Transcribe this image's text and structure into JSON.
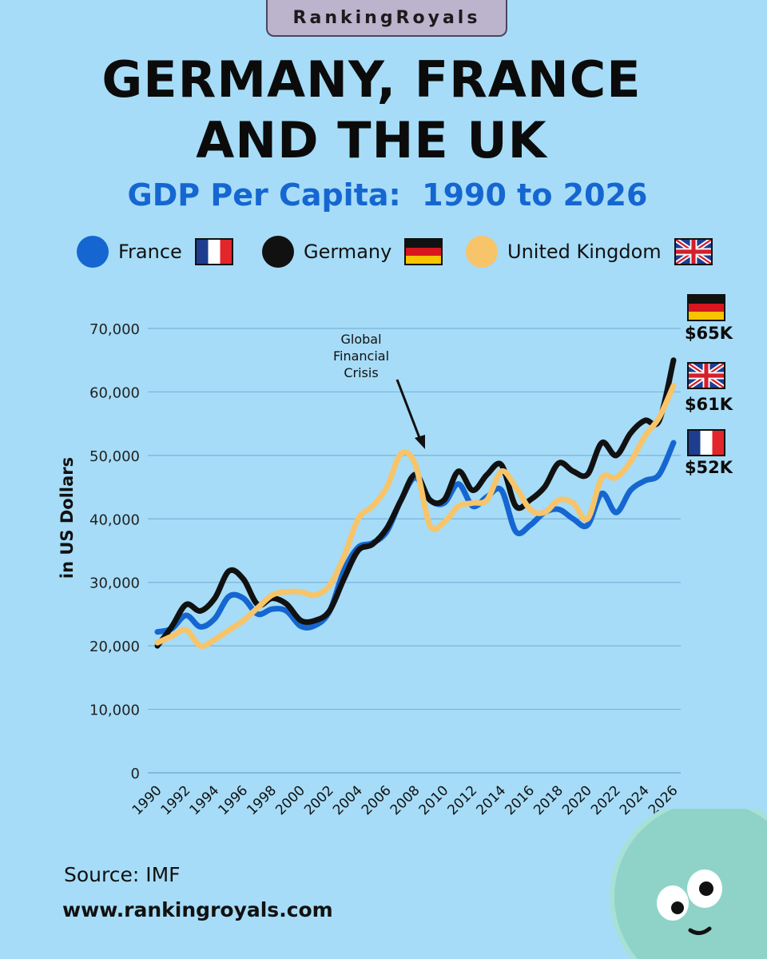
{
  "brand": "RankingRoyals",
  "title_line1": "GERMANY, FRANCE",
  "title_line2": "AND THE UK",
  "subtitle": "GDP Per Capita:  1990 to 2026",
  "legend": [
    {
      "name": "France",
      "color": "#1566d1",
      "flag": "france-flag"
    },
    {
      "name": "Germany",
      "color": "#111111",
      "flag": "germany-flag"
    },
    {
      "name": "United Kingdom",
      "color": "#f7c46a",
      "flag": "uk-flag"
    }
  ],
  "end_labels": {
    "germany": "$65K",
    "uk": "$61K",
    "france": "$52K"
  },
  "annotation": [
    "Global",
    "Financial",
    "Crisis"
  ],
  "source": "Source: IMF",
  "website": "www.rankingroyals.com",
  "colors": {
    "background": "#a6dcf7",
    "france": "#1566d1",
    "germany": "#111111",
    "uk": "#f7c46a",
    "grid": "#7ab4d8"
  },
  "chart_data": {
    "type": "line",
    "ylabel": "in US Dollars",
    "ylim": [
      0,
      70000
    ],
    "yticks": [
      "0",
      "10,000",
      "20,000",
      "30,000",
      "40,000",
      "50,000",
      "60,000",
      "70,000"
    ],
    "xticks": [
      "1990",
      "1992",
      "1994",
      "1996",
      "1998",
      "2000",
      "2002",
      "2004",
      "2006",
      "2008",
      "2010",
      "2012",
      "2014",
      "2016",
      "2018",
      "2020",
      "2022",
      "2024",
      "2026"
    ],
    "xlim": [
      1990,
      2026
    ],
    "grid": "horizontal",
    "x": [
      1990,
      1991,
      1992,
      1993,
      1994,
      1995,
      1996,
      1997,
      1998,
      1999,
      2000,
      2001,
      2002,
      2003,
      2004,
      2005,
      2006,
      2007,
      2008,
      2009,
      2010,
      2011,
      2012,
      2013,
      2014,
      2015,
      2016,
      2017,
      2018,
      2019,
      2020,
      2021,
      2022,
      2023,
      2024,
      2025,
      2026
    ],
    "series": [
      {
        "name": "France",
        "values": [
          22200,
          22700,
          24800,
          23000,
          24300,
          27800,
          27500,
          25000,
          25800,
          25500,
          23100,
          23200,
          25400,
          31800,
          35500,
          36200,
          38000,
          43000,
          46500,
          43000,
          42500,
          45500,
          42000,
          43500,
          44500,
          38000,
          39000,
          41000,
          41500,
          40000,
          39000,
          44000,
          41000,
          44500,
          46000,
          47000,
          52000
        ]
      },
      {
        "name": "Germany",
        "values": [
          20000,
          23000,
          26500,
          25500,
          27500,
          31800,
          30500,
          26500,
          27500,
          26600,
          24000,
          24000,
          25500,
          30500,
          35000,
          36000,
          38500,
          43000,
          47000,
          43000,
          43000,
          47500,
          44500,
          47000,
          48500,
          42000,
          43000,
          45000,
          48800,
          47500,
          47000,
          52000,
          50000,
          53500,
          55500,
          55500,
          65000
        ]
      },
      {
        "name": "United Kingdom",
        "values": [
          20500,
          21500,
          22500,
          20000,
          21000,
          22500,
          24000,
          26000,
          28000,
          28500,
          28500,
          28000,
          29500,
          34000,
          40000,
          42000,
          45000,
          50300,
          48500,
          39000,
          39500,
          42000,
          42500,
          43000,
          47500,
          45000,
          41500,
          41000,
          43000,
          42500,
          40000,
          46500,
          46500,
          49000,
          53000,
          56000,
          61000
        ]
      }
    ]
  }
}
